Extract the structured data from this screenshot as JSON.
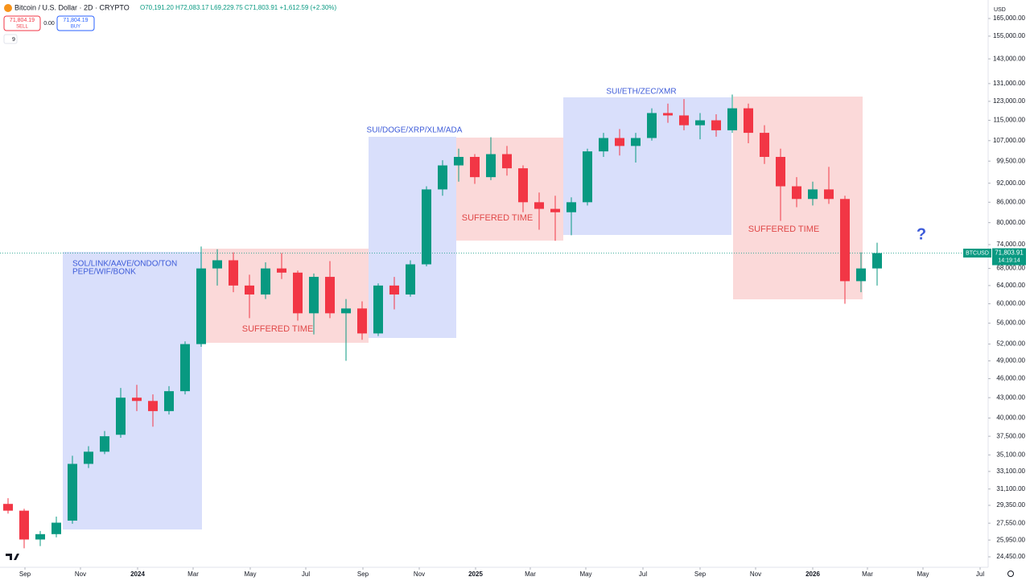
{
  "header": {
    "symbol": "Bitcoin / U.S. Dollar · 2D · CRYPTO",
    "ohlc": "O70,191.20 H72,083.17 L69,229.75 C71,803.91 +1,612.59 (+2.30%)",
    "sell_price": "71,804.19",
    "sell": "SELL",
    "spread": "0.00",
    "buy_price": "71,804.19",
    "buy": "BUY",
    "indicators": "9",
    "currency": "USD",
    "question": "?"
  },
  "chart_data": {
    "type": "candlestick",
    "categories": [
      null,
      null,
      null,
      null,
      null,
      null,
      null,
      null,
      null,
      null,
      null,
      null,
      null,
      null,
      null,
      null,
      null,
      null,
      null,
      null,
      null,
      null,
      null,
      null,
      null,
      null,
      null,
      null,
      null,
      null,
      null,
      null,
      null,
      null,
      null,
      null,
      null,
      null,
      null,
      null,
      null,
      null,
      null,
      null,
      null,
      null,
      null,
      null,
      null,
      null,
      null,
      null,
      null,
      null,
      null
    ],
    "open": [
      29500,
      28800,
      26000,
      26500,
      27800,
      34000,
      35500,
      37700,
      43000,
      42500,
      41000,
      44000,
      52000,
      68000,
      70000,
      64000,
      62000,
      68000,
      67000,
      58000,
      66000,
      58000,
      59000,
      54000,
      64000,
      62000,
      69000,
      90000,
      98000,
      101000,
      94000,
      102000,
      97000,
      86000,
      84000,
      83000,
      86000,
      103000,
      108000,
      105000,
      108000,
      118000,
      117000,
      113000,
      115000,
      111000,
      120000,
      110000,
      101000,
      91000,
      87000,
      90000,
      87000,
      65000,
      68000
    ],
    "high": [
      30100,
      29000,
      26800,
      28200,
      35000,
      36200,
      38200,
      44500,
      45000,
      43500,
      44800,
      52500,
      73500,
      72800,
      72000,
      66500,
      69500,
      71800,
      67500,
      66800,
      69800,
      61000,
      60500,
      64500,
      66000,
      70000,
      91000,
      99800,
      104000,
      102000,
      108300,
      105000,
      98000,
      89000,
      88000,
      87500,
      104000,
      110000,
      111500,
      110000,
      120000,
      122000,
      124000,
      118000,
      117500,
      126000,
      122000,
      113000,
      104000,
      94000,
      92500,
      97500,
      88000,
      72000,
      74500
    ],
    "low": [
      28500,
      25200,
      25400,
      26200,
      27500,
      33500,
      35200,
      37300,
      41000,
      38800,
      40500,
      43500,
      51500,
      64000,
      62500,
      57000,
      61000,
      65500,
      56500,
      53800,
      57000,
      49000,
      52800,
      53500,
      58800,
      61500,
      68500,
      88000,
      92500,
      91800,
      93000,
      94500,
      83000,
      78000,
      75000,
      76500,
      85000,
      101000,
      101500,
      99000,
      107000,
      114000,
      111000,
      107500,
      108500,
      110000,
      106000,
      98500,
      80500,
      84500,
      85000,
      85500,
      60000,
      62500,
      64000
    ],
    "close": [
      28800,
      26000,
      26500,
      27600,
      34000,
      35500,
      37500,
      43000,
      42500,
      41000,
      44000,
      52000,
      68000,
      70000,
      64000,
      62000,
      68000,
      67000,
      58000,
      66000,
      58000,
      59000,
      54000,
      64000,
      62000,
      69000,
      90000,
      98000,
      101000,
      94000,
      102000,
      97000,
      86000,
      84000,
      83000,
      86000,
      103000,
      108000,
      105000,
      108000,
      118000,
      117000,
      113000,
      115000,
      111000,
      120000,
      110000,
      101000,
      91000,
      87000,
      90000,
      87000,
      65000,
      68000,
      71803.91
    ],
    "up_color": "#089981",
    "down_color": "#f23645",
    "log_scale": true,
    "grid": false,
    "ylim": [
      23560,
      176200
    ],
    "yticks": [
      {
        "value": 165000,
        "label": "165,000.00"
      },
      {
        "value": 155000,
        "label": "155,000.00"
      },
      {
        "value": 143000,
        "label": "143,000.00"
      },
      {
        "value": 131000,
        "label": "131,000.00"
      },
      {
        "value": 123000,
        "label": "123,000.00"
      },
      {
        "value": 115000,
        "label": "115,000.00"
      },
      {
        "value": 107000,
        "label": "107,000.00"
      },
      {
        "value": 99500,
        "label": "99,500.00"
      },
      {
        "value": 92000,
        "label": "92,000.00"
      },
      {
        "value": 86000,
        "label": "86,000.00"
      },
      {
        "value": 80000,
        "label": "80,000.00"
      },
      {
        "value": 74000,
        "label": "74,000.00"
      },
      {
        "value": 68000,
        "label": "68,000.00"
      },
      {
        "value": 64000,
        "label": "64,000.00"
      },
      {
        "value": 60000,
        "label": "60,000.00"
      },
      {
        "value": 56000,
        "label": "56,000.00"
      },
      {
        "value": 52000,
        "label": "52,000.00"
      },
      {
        "value": 49000,
        "label": "49,000.00"
      },
      {
        "value": 46000,
        "label": "46,000.00"
      },
      {
        "value": 43000,
        "label": "43,000.00"
      },
      {
        "value": 40000,
        "label": "40,000.00"
      },
      {
        "value": 37500,
        "label": "37,500.00"
      },
      {
        "value": 35100,
        "label": "35,100.00"
      },
      {
        "value": 33100,
        "label": "33,100.00"
      },
      {
        "value": 31100,
        "label": "31,100.00"
      },
      {
        "value": 29350,
        "label": "29,350.00"
      },
      {
        "value": 27550,
        "label": "27,550.00"
      },
      {
        "value": 25950,
        "label": "25,950.00"
      },
      {
        "value": 24450,
        "label": "24,450.00"
      }
    ],
    "xticks": [
      {
        "value": 1.05,
        "label": "Sep"
      },
      {
        "value": 4.5,
        "label": "Nov"
      },
      {
        "value": 8.05,
        "label": "2024"
      },
      {
        "value": 11.5,
        "label": "Mar"
      },
      {
        "value": 15.05,
        "label": "May"
      },
      {
        "value": 18.5,
        "label": "Jul"
      },
      {
        "value": 22.05,
        "label": "Sep"
      },
      {
        "value": 25.55,
        "label": "Nov"
      },
      {
        "value": 29.05,
        "label": "2025"
      },
      {
        "value": 32.45,
        "label": "Mar"
      },
      {
        "value": 35.9,
        "label": "May"
      },
      {
        "value": 39.45,
        "label": "Jul"
      },
      {
        "value": 43,
        "label": "Sep"
      },
      {
        "value": 46.45,
        "label": "Nov"
      },
      {
        "value": 50,
        "label": "2026"
      },
      {
        "value": 53.4,
        "label": "Mar"
      },
      {
        "value": 56.85,
        "label": "May"
      },
      {
        "value": 60.4,
        "label": "Jul"
      }
    ],
    "last_price": {
      "value": 71803.91,
      "label": "71,803.91",
      "ticker": "BTCUSD",
      "countdown": "14:19:14"
    },
    "annotations": [
      {
        "text": "SOL/LINK/AAVE/ONDO/TON"
      },
      {
        "text": "PEPE/WIF/BONK"
      },
      {
        "text": "SUFFERED TIME"
      },
      {
        "text": "SUI/DOGE/XRP/XLM/ADA"
      },
      {
        "text": "SUFFERED TIME"
      },
      {
        "text": "SUI/ETH/ZEC/XMR"
      },
      {
        "text": "SUFFERED TIME"
      }
    ]
  }
}
